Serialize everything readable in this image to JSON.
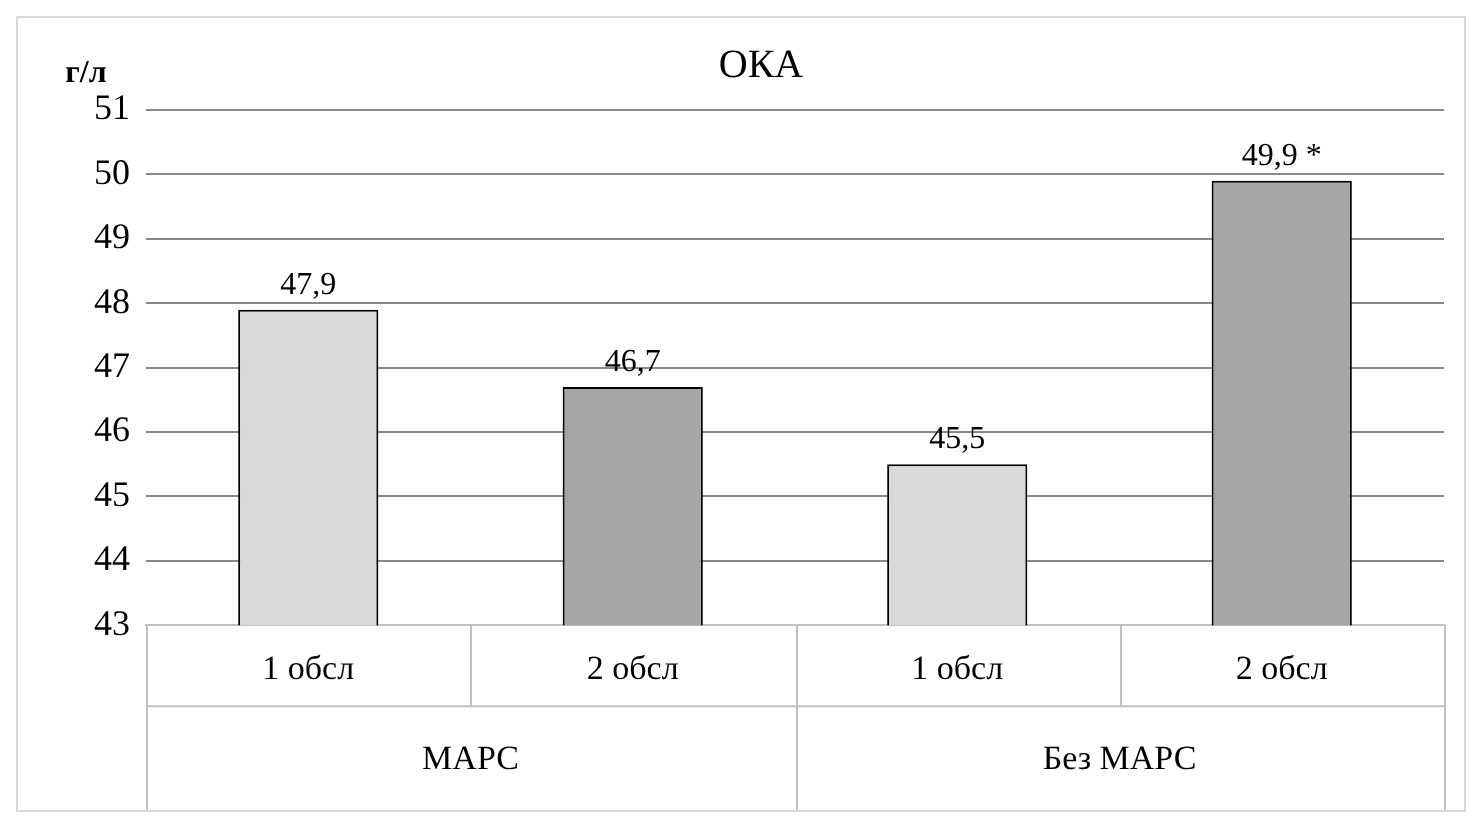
{
  "chart_data": {
    "type": "bar",
    "title": "ОКА",
    "ylabel": "г/л",
    "categories": [
      "1 обсл",
      "2 обсл",
      "1 обсл",
      "2 обсл"
    ],
    "values": [
      47.9,
      46.7,
      45.5,
      49.9
    ],
    "colors": [
      "#d9d9d9",
      "#a6a6a6",
      "#d9d9d9",
      "#a6a6a6"
    ],
    "value_labels": [
      "47,9",
      "46,7",
      "45,5",
      "49,9 *"
    ],
    "annotations": [
      "МАРС",
      "Без МАРС"
    ],
    "ylim": [
      43,
      51
    ],
    "yticks": [
      43,
      44,
      45,
      46,
      47,
      48,
      49,
      50,
      51
    ],
    "grid": "y",
    "legend": false
  }
}
